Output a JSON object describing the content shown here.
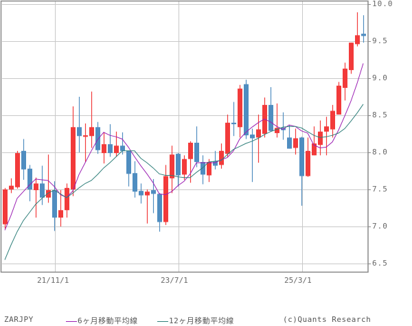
{
  "symbol": "ZARJPY",
  "legend": {
    "ma6": {
      "label": "6ヶ月移動平均線",
      "color": "#9b1fb3"
    },
    "ma12": {
      "label": "12ヶ月移動平均線",
      "color": "#2f7f7a"
    }
  },
  "credit": "(c)Quants Research",
  "colors": {
    "up": "#f23a3a",
    "down": "#4f8dc0",
    "grid": "#c8c8c8",
    "axis": "#888888"
  },
  "chart_data": {
    "type": "candlestick",
    "title": "ZARJPY",
    "xlabel": "",
    "ylabel": "",
    "ylim": [
      6.4,
      10.0
    ],
    "y_ticks": [
      "10.0",
      "9.5",
      "9.0",
      "8.5",
      "8.0",
      "7.5",
      "7.0",
      "6.5"
    ],
    "x_ticks": [
      {
        "label": "21/11/1",
        "index": 8
      },
      {
        "label": "23/7/1",
        "index": 28
      },
      {
        "label": "25/3/1",
        "index": 48
      }
    ],
    "grid": true,
    "legend_position": "bottom",
    "candles": [
      {
        "o": 7.03,
        "h": 7.52,
        "l": 6.97,
        "c": 7.5
      },
      {
        "o": 7.5,
        "h": 7.65,
        "l": 7.45,
        "c": 7.55
      },
      {
        "o": 7.53,
        "h": 8.02,
        "l": 7.51,
        "c": 7.99
      },
      {
        "o": 8.02,
        "h": 8.18,
        "l": 7.63,
        "c": 7.77
      },
      {
        "o": 7.78,
        "h": 7.83,
        "l": 7.34,
        "c": 7.5
      },
      {
        "o": 7.49,
        "h": 7.66,
        "l": 7.12,
        "c": 7.58
      },
      {
        "o": 7.58,
        "h": 7.82,
        "l": 7.29,
        "c": 7.39
      },
      {
        "o": 7.39,
        "h": 7.97,
        "l": 7.32,
        "c": 7.49
      },
      {
        "o": 7.49,
        "h": 7.61,
        "l": 6.94,
        "c": 7.12
      },
      {
        "o": 7.12,
        "h": 7.49,
        "l": 7.0,
        "c": 7.22
      },
      {
        "o": 7.22,
        "h": 7.58,
        "l": 7.12,
        "c": 7.52
      },
      {
        "o": 7.5,
        "h": 8.62,
        "l": 7.41,
        "c": 8.34
      },
      {
        "o": 8.34,
        "h": 8.75,
        "l": 8.0,
        "c": 8.22
      },
      {
        "o": 8.21,
        "h": 8.39,
        "l": 7.87,
        "c": 8.23
      },
      {
        "o": 8.22,
        "h": 8.82,
        "l": 8.06,
        "c": 8.34
      },
      {
        "o": 8.34,
        "h": 8.41,
        "l": 7.98,
        "c": 8.03
      },
      {
        "o": 7.99,
        "h": 8.27,
        "l": 7.85,
        "c": 8.11
      },
      {
        "o": 8.11,
        "h": 8.38,
        "l": 7.94,
        "c": 7.99
      },
      {
        "o": 7.99,
        "h": 8.28,
        "l": 7.94,
        "c": 8.09
      },
      {
        "o": 8.09,
        "h": 8.27,
        "l": 7.97,
        "c": 8.02
      },
      {
        "o": 8.02,
        "h": 8.02,
        "l": 7.54,
        "c": 7.71
      },
      {
        "o": 7.72,
        "h": 7.88,
        "l": 7.39,
        "c": 7.47
      },
      {
        "o": 7.48,
        "h": 7.58,
        "l": 7.31,
        "c": 7.42
      },
      {
        "o": 7.42,
        "h": 7.5,
        "l": 7.04,
        "c": 7.47
      },
      {
        "o": 7.49,
        "h": 7.64,
        "l": 7.18,
        "c": 7.44
      },
      {
        "o": 7.44,
        "h": 7.45,
        "l": 6.93,
        "c": 7.06
      },
      {
        "o": 7.06,
        "h": 7.83,
        "l": 7.02,
        "c": 7.68
      },
      {
        "o": 7.65,
        "h": 8.09,
        "l": 7.45,
        "c": 7.97
      },
      {
        "o": 7.98,
        "h": 7.99,
        "l": 7.54,
        "c": 7.69
      },
      {
        "o": 7.7,
        "h": 7.96,
        "l": 7.63,
        "c": 7.91
      },
      {
        "o": 7.91,
        "h": 8.15,
        "l": 7.59,
        "c": 8.13
      },
      {
        "o": 8.13,
        "h": 8.35,
        "l": 7.8,
        "c": 7.87
      },
      {
        "o": 7.87,
        "h": 7.96,
        "l": 7.57,
        "c": 7.7
      },
      {
        "o": 7.69,
        "h": 7.91,
        "l": 7.6,
        "c": 7.87
      },
      {
        "o": 7.88,
        "h": 8.02,
        "l": 7.77,
        "c": 7.82
      },
      {
        "o": 7.83,
        "h": 8.12,
        "l": 7.78,
        "c": 8.02
      },
      {
        "o": 7.98,
        "h": 8.51,
        "l": 7.94,
        "c": 8.4
      },
      {
        "o": 8.4,
        "h": 8.68,
        "l": 8.22,
        "c": 8.38
      },
      {
        "o": 8.34,
        "h": 8.91,
        "l": 8.2,
        "c": 8.86
      },
      {
        "o": 8.92,
        "h": 8.98,
        "l": 8.18,
        "c": 8.23
      },
      {
        "o": 8.24,
        "h": 8.32,
        "l": 7.6,
        "c": 8.19
      },
      {
        "o": 8.2,
        "h": 8.51,
        "l": 7.86,
        "c": 8.31
      },
      {
        "o": 8.25,
        "h": 8.74,
        "l": 8.2,
        "c": 8.64
      },
      {
        "o": 8.64,
        "h": 8.88,
        "l": 8.28,
        "c": 8.29
      },
      {
        "o": 8.26,
        "h": 8.66,
        "l": 8.2,
        "c": 8.33
      },
      {
        "o": 8.33,
        "h": 8.54,
        "l": 8.17,
        "c": 8.3
      },
      {
        "o": 8.2,
        "h": 8.37,
        "l": 8.05,
        "c": 8.05
      },
      {
        "o": 8.06,
        "h": 8.32,
        "l": 7.97,
        "c": 8.19
      },
      {
        "o": 8.2,
        "h": 8.21,
        "l": 7.28,
        "c": 7.68
      },
      {
        "o": 7.68,
        "h": 8.2,
        "l": 7.67,
        "c": 8.02
      },
      {
        "o": 7.96,
        "h": 8.35,
        "l": 7.96,
        "c": 8.12
      },
      {
        "o": 8.1,
        "h": 8.43,
        "l": 7.96,
        "c": 8.28
      },
      {
        "o": 8.28,
        "h": 8.48,
        "l": 7.96,
        "c": 8.35
      },
      {
        "o": 8.31,
        "h": 8.64,
        "l": 8.2,
        "c": 8.56
      },
      {
        "o": 8.51,
        "h": 8.95,
        "l": 8.51,
        "c": 8.9
      },
      {
        "o": 8.87,
        "h": 9.21,
        "l": 8.7,
        "c": 9.13
      },
      {
        "o": 9.11,
        "h": 9.48,
        "l": 9.06,
        "c": 9.48
      },
      {
        "o": 9.46,
        "h": 9.89,
        "l": 9.43,
        "c": 9.58
      },
      {
        "o": 9.6,
        "h": 9.85,
        "l": 9.48,
        "c": 9.57
      }
    ],
    "series": [
      {
        "name": "6ヶ月移動平均線",
        "color": "#9b1fb3",
        "values": [
          6.95,
          7.15,
          7.38,
          7.47,
          7.56,
          7.64,
          7.63,
          7.62,
          7.54,
          7.43,
          7.39,
          7.48,
          7.7,
          7.86,
          8.02,
          8.17,
          8.27,
          8.23,
          8.21,
          8.18,
          8.07,
          7.94,
          7.82,
          7.71,
          7.59,
          7.44,
          7.43,
          7.47,
          7.55,
          7.61,
          7.71,
          7.86,
          7.86,
          7.86,
          7.86,
          7.9,
          7.93,
          8.02,
          8.18,
          8.27,
          8.34,
          8.4,
          8.45,
          8.41,
          8.35,
          8.31,
          8.37,
          8.35,
          8.29,
          8.26,
          8.1,
          8.06,
          8.07,
          8.14,
          8.3,
          8.49,
          8.69,
          8.93,
          9.2
        ]
      },
      {
        "name": "12ヶ月移動平均線",
        "color": "#2f7f7a",
        "values": [
          6.55,
          6.75,
          6.93,
          7.08,
          7.19,
          7.3,
          7.38,
          7.45,
          7.49,
          7.44,
          7.39,
          7.45,
          7.52,
          7.58,
          7.62,
          7.7,
          7.79,
          7.86,
          7.94,
          8.02,
          8.02,
          8.02,
          7.92,
          7.86,
          7.79,
          7.71,
          7.69,
          7.69,
          7.67,
          7.66,
          7.66,
          7.73,
          7.79,
          7.87,
          7.88,
          7.89,
          7.97,
          8.04,
          8.08,
          8.12,
          8.15,
          8.19,
          8.24,
          8.28,
          8.31,
          8.34,
          8.35,
          8.35,
          8.33,
          8.28,
          8.23,
          8.2,
          8.21,
          8.23,
          8.26,
          8.32,
          8.42,
          8.53,
          8.65
        ]
      }
    ]
  }
}
